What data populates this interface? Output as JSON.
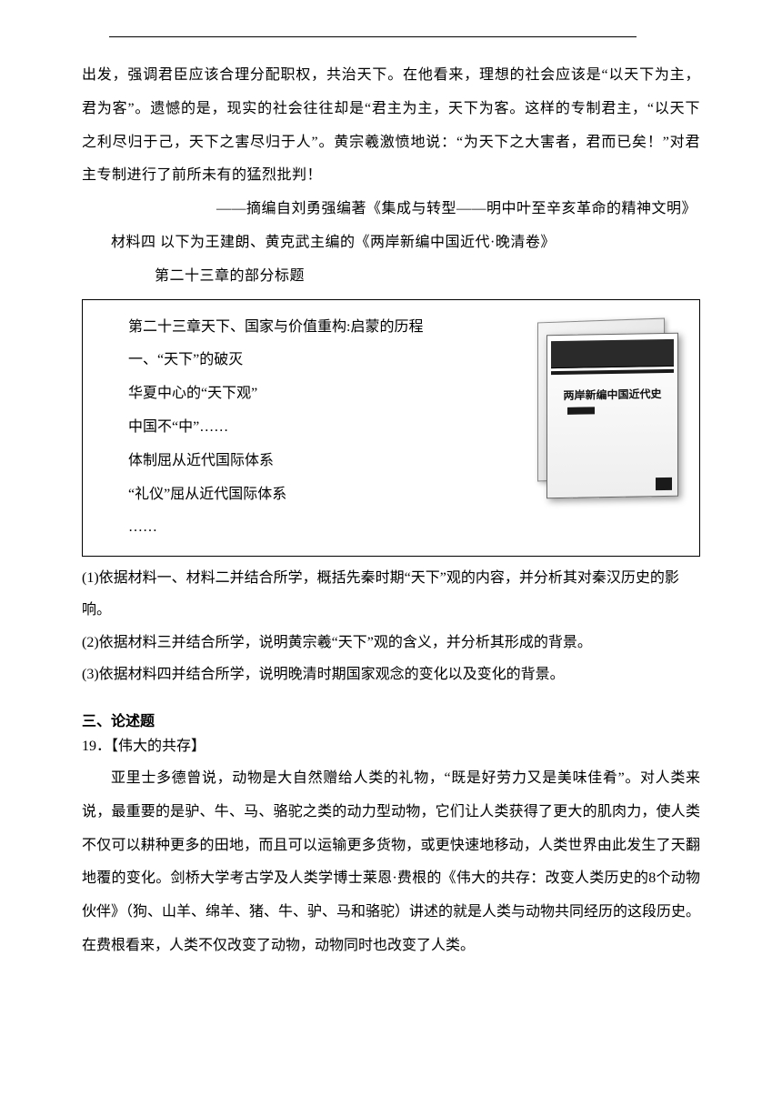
{
  "colors": {
    "text": "#000000",
    "background": "#ffffff",
    "rule": "#000000",
    "box_border": "#000000",
    "book_dark": "#1a1a1a",
    "book_light": "#eeeeee"
  },
  "typography": {
    "body_fontsize_pt": 12,
    "line_height": 2.3,
    "font_family": "SimSun"
  },
  "para1": "出发，强调君臣应该合理分配职权，共治天下。在他看来，理想的社会应该是“以天下为主，君为客”。遗憾的是，现实的社会往往却是“君主为主，天下为客。这样的专制君主，“以天下之利尽归于己，天下之害尽归于人”。黄宗羲激愤地说：“为天下之大害者，君而已矣！”对君主专制进行了前所未有的猛烈批判！",
  "source1": "——摘编自刘勇强编著《集成与转型——明中叶至辛亥革命的精神文明》",
  "material4_intro_a": "材料四  以下为王建朗、黄克武主编的《两岸新编中国近代·晚清卷》",
  "material4_intro_b": "第二十三章的部分标题",
  "box": {
    "line1": "第二十三章天下、国家与价值重构:启蒙的历程",
    "line2": "一、“天下”的破灭",
    "line3": "华夏中心的“天下观”",
    "line4": "中国不“中”……",
    "line5": "体制屈从近代国际体系",
    "line6": "“礼仪”屈从近代国际体系",
    "line7": "……"
  },
  "book_cover_title": "两岸新编中国近代史",
  "questions": {
    "q1": "(1)依据材料一、材料二并结合所学，概括先秦时期“天下”观的内容，并分析其对秦汉历史的影响。",
    "q2": "(2)依据材料三并结合所学，说明黄宗羲“天下”观的含义，并分析其形成的背景。",
    "q3": "(3)依据材料四并结合所学，说明晚清时期国家观念的变化以及变化的背景。"
  },
  "section3_title": "三、论述题",
  "q19_label": "19．【伟大的共存】",
  "essay": "亚里士多德曾说，动物是大自然赠给人类的礼物，“既是好劳力又是美味佳肴”。对人类来说，最重要的是驴、牛、马、骆驼之类的动力型动物，它们让人类获得了更大的肌肉力，使人类不仅可以耕种更多的田地，而且可以运输更多货物，或更快速地移动，人类世界由此发生了天翻地覆的变化。剑桥大学考古学及人类学博士莱恩·费根的《伟大的共存：改变人类历史的8个动物伙伴》（狗、山羊、绵羊、猪、牛、驴、马和骆驼）讲述的就是人类与动物共同经历的这段历史。在费根看来，人类不仅改变了动物，动物同时也改变了人类。"
}
